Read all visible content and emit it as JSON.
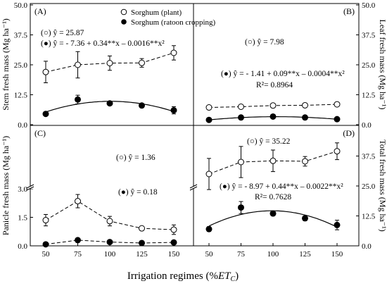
{
  "figure": {
    "x_axis_label_main": "Irrigation regimes (%",
    "x_axis_label_et": "ET",
    "x_axis_label_sub": "C",
    "x_axis_label_close": ")"
  },
  "legend": {
    "plant": "Sorghum (plant)",
    "ratoon": "Sorghum (ratoon cropping)"
  },
  "colors": {
    "plant_fill": "#ffffff",
    "ratoon_fill": "#000000",
    "line": "#000000"
  },
  "chart_data": [
    {
      "id": "A",
      "type": "line",
      "panel_label": "(A)",
      "ylabel": "Stem fresh mass (Mg ha⁻¹)",
      "ylim": [
        0,
        50
      ],
      "yticks": [
        "0.0",
        "12.5",
        "25.0",
        "37.5",
        "50.0"
      ],
      "ytick_side": "left",
      "x": [
        50,
        75,
        100,
        125,
        150
      ],
      "series": [
        {
          "name": "Sorghum (plant)",
          "style": "open",
          "values": [
            22.0,
            25.0,
            25.7,
            25.8,
            30.0
          ],
          "errors": [
            4.5,
            5.5,
            3.0,
            1.8,
            3.0
          ]
        },
        {
          "name": "Sorghum (ratoon cropping)",
          "style": "filled",
          "values": [
            4.5,
            10.5,
            8.9,
            8.0,
            6.0
          ],
          "errors": [
            0.8,
            1.8,
            0.8,
            0.8,
            1.5
          ]
        }
      ],
      "annotations": [
        "(○) ŷ = 25.87",
        "(●) ŷ = - 7.36 + 0.34**x – 0.0016**x²"
      ]
    },
    {
      "id": "B",
      "type": "line",
      "panel_label": "(B)",
      "ylabel": "Leaf fresh mass (Mg ha⁻¹)",
      "ylim": [
        0,
        50
      ],
      "yticks": [
        "0.0",
        "12.5",
        "25.0",
        "37.5",
        "50.0"
      ],
      "ytick_side": "right",
      "x": [
        50,
        75,
        100,
        125,
        150
      ],
      "series": [
        {
          "name": "Sorghum (plant)",
          "style": "open",
          "values": [
            7.2,
            7.5,
            8.0,
            8.1,
            8.5
          ],
          "errors": [
            0.6,
            0.6,
            0.6,
            0.6,
            0.6
          ]
        },
        {
          "name": "Sorghum (ratoon cropping)",
          "style": "filled",
          "values": [
            2.0,
            3.0,
            3.4,
            3.0,
            2.3
          ],
          "errors": [
            0.3,
            0.3,
            0.3,
            0.3,
            0.3
          ]
        }
      ],
      "annotations": [
        "(○) ŷ = 7.98",
        "(●) ŷ = - 1.41 + 0.09**x – 0.0004**x²",
        "R²= 0.8964"
      ]
    },
    {
      "id": "C",
      "type": "line",
      "panel_label": "(C)",
      "ylabel": "Panicle fresh mass (Mg ha⁻¹)",
      "ylim": [
        0,
        3.0
      ],
      "yticks": [
        "0.0",
        "1.5",
        "3.0"
      ],
      "ytick_side": "left",
      "x": [
        50,
        75,
        100,
        125,
        150
      ],
      "series": [
        {
          "name": "Sorghum (plant)",
          "style": "open",
          "values": [
            1.35,
            2.35,
            1.3,
            0.92,
            0.85
          ],
          "errors": [
            0.3,
            0.35,
            0.25,
            0.1,
            0.25
          ]
        },
        {
          "name": "Sorghum (ratoon cropping)",
          "style": "filled",
          "values": [
            0.08,
            0.3,
            0.2,
            0.15,
            0.18
          ],
          "errors": [
            0.05,
            0.05,
            0.05,
            0.05,
            0.05
          ]
        }
      ],
      "annotations": [
        "(○) ŷ = 1.36",
        "(●) ŷ = 0.18"
      ]
    },
    {
      "id": "D",
      "type": "line",
      "panel_label": "(D)",
      "ylabel": "Total fresh mass (Mg ha⁻¹)",
      "ylim": [
        0,
        50
      ],
      "yticks": [
        "0.0",
        "12.5",
        "25.0",
        "37.5"
      ],
      "ytick_side": "right",
      "x": [
        50,
        75,
        100,
        125,
        150
      ],
      "series": [
        {
          "name": "Sorghum (plant)",
          "style": "open",
          "values": [
            30.0,
            35.0,
            35.5,
            35.3,
            39.5
          ],
          "errors": [
            6.5,
            6.5,
            4.5,
            2.0,
            3.5
          ]
        },
        {
          "name": "Sorghum (ratoon cropping)",
          "style": "filled",
          "values": [
            7.0,
            16.0,
            13.5,
            11.5,
            8.7
          ],
          "errors": [
            1.0,
            2.5,
            1.0,
            1.0,
            2.0
          ]
        }
      ],
      "annotations": [
        "(○) ŷ = 35.22",
        "(●) ŷ = - 8.97 + 0.44**x – 0.0022**x²",
        "R²= 0.7628"
      ]
    }
  ]
}
